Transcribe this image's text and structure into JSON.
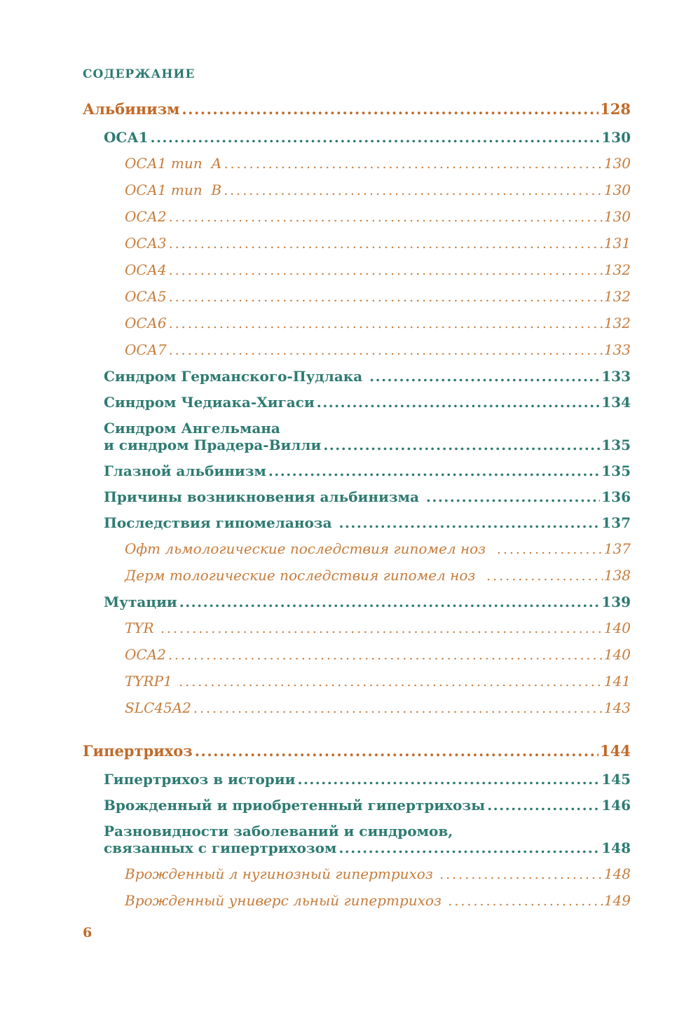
{
  "page": {
    "header": "СОДЕРЖАНИЕ",
    "footer_page_number": "6"
  },
  "colors": {
    "teal": "#2E7B72",
    "orange": "#C06A29",
    "orange_light": "#C67C3B",
    "background": "#FFFFFF"
  },
  "toc": [
    {
      "style": "chapter",
      "level": 0,
      "lines": [
        "Альбинизм"
      ],
      "page": "128"
    },
    {
      "style": "section",
      "level": 1,
      "lines": [
        "ОСА1"
      ],
      "page": "130"
    },
    {
      "style": "sub",
      "level": 2,
      "lines": [
        "ОСА1 тип  А"
      ],
      "page": "130"
    },
    {
      "style": "sub",
      "level": 2,
      "lines": [
        "ОСА1 тип  В"
      ],
      "page": "130"
    },
    {
      "style": "sub",
      "level": 2,
      "lines": [
        "ОСА2"
      ],
      "page": "130"
    },
    {
      "style": "sub",
      "level": 2,
      "lines": [
        "ОСА3"
      ],
      "page": "131"
    },
    {
      "style": "sub",
      "level": 2,
      "lines": [
        "ОСА4"
      ],
      "page": "132"
    },
    {
      "style": "sub",
      "level": 2,
      "lines": [
        "ОСА5"
      ],
      "page": "132"
    },
    {
      "style": "sub",
      "level": 2,
      "lines": [
        "ОСА6"
      ],
      "page": "132"
    },
    {
      "style": "sub",
      "level": 2,
      "lines": [
        "ОСА7"
      ],
      "page": "133"
    },
    {
      "style": "section",
      "level": 1,
      "lines": [
        "Синдром Германского-Пудлака "
      ],
      "page": "133"
    },
    {
      "style": "section",
      "level": 1,
      "lines": [
        "Синдром Чедиака-Хигаси"
      ],
      "page": "134"
    },
    {
      "style": "section",
      "level": 1,
      "lines": [
        "Синдром Ангельмана",
        "и синдром Прадера-Вилли"
      ],
      "page": "135"
    },
    {
      "style": "section",
      "level": 1,
      "lines": [
        "Глазной альбинизм"
      ],
      "page": "135"
    },
    {
      "style": "section",
      "level": 1,
      "lines": [
        "Причины возникновения альбинизма "
      ],
      "page": "136"
    },
    {
      "style": "section",
      "level": 1,
      "lines": [
        "Последствия гипомеланоза "
      ],
      "page": "137"
    },
    {
      "style": "sub",
      "level": 2,
      "lines": [
        "Офт льмологические последствия гипомел ноз  "
      ],
      "page": "137"
    },
    {
      "style": "sub",
      "level": 2,
      "lines": [
        "Дерм тологические последствия гипомел ноз  "
      ],
      "page": "138"
    },
    {
      "style": "section",
      "level": 1,
      "lines": [
        "Мутации"
      ],
      "page": "139"
    },
    {
      "style": "sub",
      "level": 2,
      "lines": [
        "TYR "
      ],
      "page": "140"
    },
    {
      "style": "sub",
      "level": 2,
      "lines": [
        "OCA2"
      ],
      "page": "140"
    },
    {
      "style": "sub",
      "level": 2,
      "lines": [
        "TYRP1 "
      ],
      "page": "141"
    },
    {
      "style": "sub",
      "level": 2,
      "lines": [
        "SLC45A2"
      ],
      "page": "143"
    },
    {
      "style": "chapter",
      "level": 0,
      "gap_before": true,
      "lines": [
        "Гипертрихоз"
      ],
      "page": "144"
    },
    {
      "style": "section",
      "level": 1,
      "lines": [
        "Гипертрихоз в истории"
      ],
      "page": "145"
    },
    {
      "style": "section",
      "level": 1,
      "lines": [
        "Врожденный и приобретенный гипертрихозы"
      ],
      "page": "146"
    },
    {
      "style": "section",
      "level": 1,
      "lines": [
        "Разновидности заболеваний и синдромов,",
        "связанных с гипертрихозом"
      ],
      "page": "148"
    },
    {
      "style": "sub",
      "level": 2,
      "lines": [
        "Врожденный л нугинозный гипертрихоз "
      ],
      "page": "148"
    },
    {
      "style": "sub",
      "level": 2,
      "lines": [
        "Врожденный универс льный гипертрихоз "
      ],
      "page": "149"
    }
  ]
}
